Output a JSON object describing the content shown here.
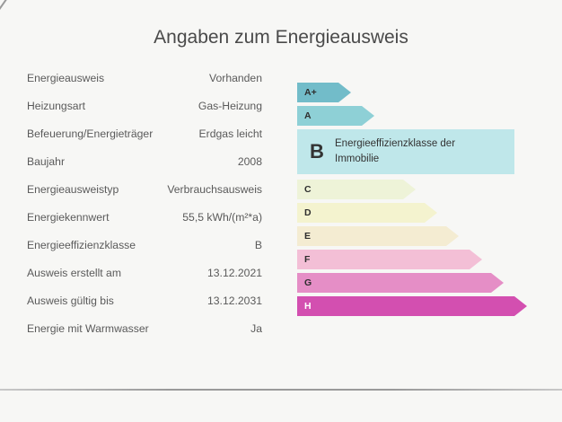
{
  "page": {
    "title": "Angaben zum Energieausweis"
  },
  "info": [
    {
      "key": "Energieausweis",
      "value": "Vorhanden"
    },
    {
      "key": "Heizungsart",
      "value": "Gas-Heizung"
    },
    {
      "key": "Befeuerung/Energieträger",
      "value": "Erdgas leicht"
    },
    {
      "key": "Baujahr",
      "value": "2008"
    },
    {
      "key": "Energieausweistyp",
      "value": "Verbrauchsausweis"
    },
    {
      "key": "Energiekennwert",
      "value": "55,5 kWh/(m²*a)"
    },
    {
      "key": "Energieeffizienzklasse",
      "value": "B"
    },
    {
      "key": "Ausweis erstellt am",
      "value": "13.12.2021"
    },
    {
      "key": "Ausweis gültig bis",
      "value": "13.12.2031"
    },
    {
      "key": "Energie mit Warmwasser",
      "value": "Ja"
    }
  ],
  "scale": {
    "classes": [
      {
        "label": "A+",
        "color": "#72bcc9"
      },
      {
        "label": "A",
        "color": "#8ed0d6"
      },
      {
        "label": "C",
        "color": "#eef3d8"
      },
      {
        "label": "D",
        "color": "#f4f3cf"
      },
      {
        "label": "E",
        "color": "#f4ecd2"
      },
      {
        "label": "F",
        "color": "#f3bfd6"
      },
      {
        "label": "G",
        "color": "#e58ec6"
      },
      {
        "label": "H",
        "color": "#d34fb0"
      }
    ],
    "current": {
      "label": "B",
      "description": "Energieeffizienzklasse der Immobilie",
      "color": "#bfe7ea"
    }
  }
}
